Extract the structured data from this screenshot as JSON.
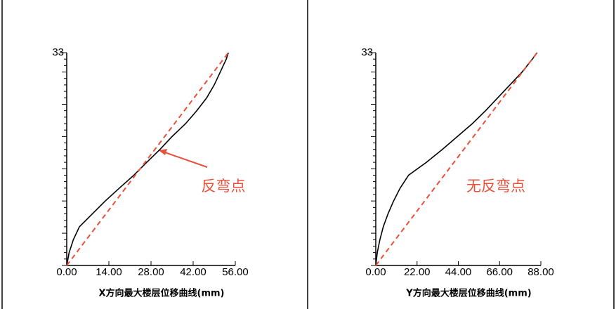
{
  "chart_data": [
    {
      "type": "line",
      "x_label": "X方向最大楼层位移曲线(mm)",
      "annotation": "反弯点",
      "xlim": [
        0,
        56
      ],
      "xticks": [
        {
          "value": 0,
          "label": "0.00"
        },
        {
          "value": 14,
          "label": "14.00"
        },
        {
          "value": 28,
          "label": "28.00"
        },
        {
          "value": 42,
          "label": "42.00"
        },
        {
          "value": 56,
          "label": "56.00"
        }
      ],
      "ylim": [
        0,
        33
      ],
      "yticks": [
        33
      ],
      "series": [
        {
          "color": "#000000",
          "dashed": false,
          "x": [
            0,
            0.8,
            2.2,
            4.2,
            8.5,
            12.8,
            17.5,
            22.3,
            26.6,
            31,
            35,
            39.5,
            43.2,
            46.5,
            49,
            51,
            53,
            53.7
          ],
          "values": [
            0,
            2,
            4,
            6,
            8,
            10,
            12,
            14,
            16,
            18,
            20,
            22,
            24,
            26,
            28,
            30,
            32,
            33
          ]
        },
        {
          "color": "#e8503a",
          "dashed": true,
          "x": [
            0,
            53.7
          ],
          "values": [
            0,
            33
          ]
        }
      ]
    },
    {
      "type": "line",
      "x_label": "Y方向最大楼层位移曲线(mm)",
      "annotation": "无反弯点",
      "xlim": [
        0,
        88
      ],
      "xticks": [
        {
          "value": 0,
          "label": "0.00"
        },
        {
          "value": 22,
          "label": "22.00"
        },
        {
          "value": 44,
          "label": "44.00"
        },
        {
          "value": 66,
          "label": "66.00"
        },
        {
          "value": 88,
          "label": "88.00"
        }
      ],
      "ylim": [
        0,
        33
      ],
      "yticks": [
        33
      ],
      "series": [
        {
          "color": "#000000",
          "dashed": false,
          "x": [
            0,
            0.8,
            2.2,
            4,
            6.5,
            9.5,
            13,
            17.5,
            27,
            35.5,
            43.5,
            51.5,
            58.5,
            65,
            71.5,
            78,
            83.5,
            86
          ],
          "values": [
            0,
            2,
            4,
            6,
            8,
            10,
            12,
            14,
            16,
            18,
            20,
            22,
            24,
            26,
            28,
            30,
            32,
            33
          ]
        },
        {
          "color": "#e8503a",
          "dashed": true,
          "x": [
            0,
            86
          ],
          "values": [
            0,
            33
          ]
        }
      ]
    }
  ]
}
